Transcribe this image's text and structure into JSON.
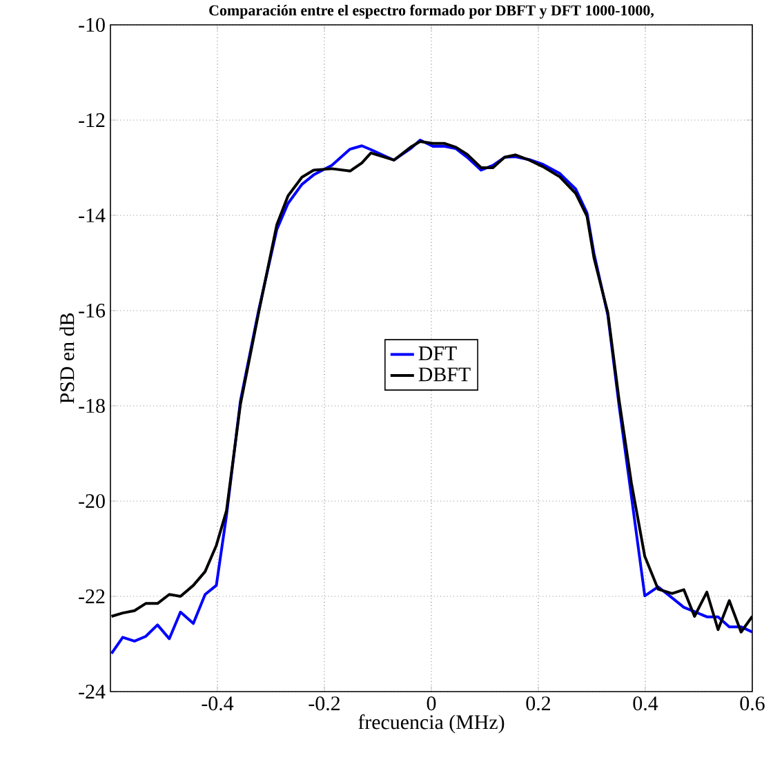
{
  "chart_data": {
    "type": "line",
    "title": "Comparación entre el espectro formado por DBFT y DFT 1000-1000,",
    "xlabel": "frecuencia (MHz)",
    "ylabel": "PSD en dB",
    "x": [
      -0.598,
      -0.577,
      -0.555,
      -0.534,
      -0.512,
      -0.49,
      -0.469,
      -0.445,
      -0.423,
      -0.402,
      -0.383,
      -0.357,
      -0.323,
      -0.289,
      -0.268,
      -0.242,
      -0.22,
      -0.186,
      -0.152,
      -0.13,
      -0.113,
      -0.07,
      -0.039,
      -0.021,
      0.003,
      0.025,
      0.046,
      0.067,
      0.093,
      0.115,
      0.137,
      0.157,
      0.183,
      0.209,
      0.24,
      0.27,
      0.291,
      0.304,
      0.33,
      0.351,
      0.374,
      0.399,
      0.424,
      0.45,
      0.472,
      0.492,
      0.515,
      0.536,
      0.557,
      0.579,
      0.6
    ],
    "series": [
      {
        "name": "DFT",
        "color": "#0000ff",
        "values": [
          -23.2,
          -22.86,
          -22.94,
          -22.84,
          -22.6,
          -22.89,
          -22.33,
          -22.57,
          -21.96,
          -21.77,
          -20.3,
          -17.9,
          -16.0,
          -14.3,
          -13.75,
          -13.35,
          -13.15,
          -12.95,
          -12.61,
          -12.54,
          -12.62,
          -12.84,
          -12.6,
          -12.42,
          -12.55,
          -12.55,
          -12.6,
          -12.78,
          -13.05,
          -12.95,
          -12.78,
          -12.77,
          -12.83,
          -12.93,
          -13.12,
          -13.45,
          -13.95,
          -14.8,
          -16.1,
          -18.0,
          -19.9,
          -21.99,
          -21.8,
          -22.03,
          -22.23,
          -22.32,
          -22.43,
          -22.43,
          -22.64,
          -22.64,
          -22.75
        ]
      },
      {
        "name": "DBFT",
        "color": "#000000",
        "values": [
          -22.42,
          -22.35,
          -22.3,
          -22.15,
          -22.15,
          -21.96,
          -22.0,
          -21.77,
          -21.48,
          -20.93,
          -20.2,
          -17.97,
          -16.05,
          -14.2,
          -13.59,
          -13.2,
          -13.05,
          -13.02,
          -13.07,
          -12.9,
          -12.69,
          -12.84,
          -12.57,
          -12.45,
          -12.49,
          -12.49,
          -12.57,
          -12.72,
          -13.0,
          -13.0,
          -12.78,
          -12.73,
          -12.84,
          -12.98,
          -13.19,
          -13.54,
          -14.02,
          -14.89,
          -16.05,
          -17.88,
          -19.62,
          -21.16,
          -21.85,
          -21.94,
          -21.86,
          -22.42,
          -21.91,
          -22.7,
          -22.09,
          -22.75,
          -22.42
        ]
      }
    ],
    "xlim": [
      -0.6,
      0.6
    ],
    "ylim": [
      -24,
      -10
    ],
    "xticks": [
      -0.4,
      -0.2,
      0,
      0.2,
      0.4,
      0.6
    ],
    "yticks": [
      -24,
      -22,
      -20,
      -18,
      -16,
      -14,
      -12,
      -10
    ],
    "grid": true,
    "legend": "center",
    "marker": "none",
    "line_style": "solid"
  }
}
